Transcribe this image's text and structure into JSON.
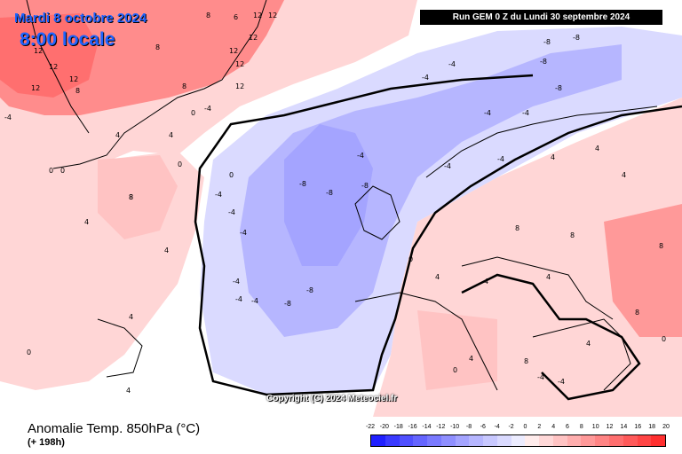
{
  "header": {
    "date": "Mardi 8 octobre 2024",
    "time": "8:00 locale",
    "run": "Run GEM 0 Z du Lundi 30 septembre 2024"
  },
  "copyright": "Copyright (C) 2024 Meteociel.fr",
  "legend": {
    "title": "Anomalie Temp. 850hPa (°C)",
    "subtitle": "(+ 198h)",
    "scale_values": [
      "-22",
      "-20",
      "-18",
      "-16",
      "-14",
      "-12",
      "-10",
      "-8",
      "-6",
      "-4",
      "-2",
      "0",
      "2",
      "4",
      "6",
      "8",
      "10",
      "12",
      "14",
      "16",
      "18",
      "20"
    ],
    "scale_colors": [
      "#2020ff",
      "#3a3aff",
      "#5050ff",
      "#6565ff",
      "#7a7aff",
      "#8f8fff",
      "#a4a4ff",
      "#b6b6ff",
      "#c8c8ff",
      "#dadaff",
      "#ececff",
      "#ffecec",
      "#ffd8d8",
      "#ffc3c3",
      "#ffaeae",
      "#ff9999",
      "#ff8484",
      "#ff6f6f",
      "#ff5a5a",
      "#ff4545",
      "#ff2f2f"
    ]
  },
  "map": {
    "colors": {
      "sea": "#ffffff",
      "warm": "#ff8c8c",
      "mild": "#ffd6d6",
      "cool": "#c8c8ff",
      "cold": "#9a9aff",
      "border": "#000000"
    },
    "contour_labels": [
      "12",
      "12",
      "12",
      "12",
      "12",
      "12",
      "12",
      "8",
      "8",
      "6",
      "8",
      "12",
      "12",
      "8",
      "12",
      "8",
      "8",
      "4",
      "4",
      "0",
      "-4",
      "0",
      "0",
      "0",
      "0",
      "-4",
      "4",
      "8",
      "4",
      "0",
      "-4",
      "-4",
      "-4",
      "-4",
      "-4",
      "-4",
      "-8",
      "-8",
      "-8",
      "-8",
      "-8",
      "-8",
      "-4",
      "-4",
      "-4",
      "-4",
      "-8",
      "-8",
      "-8",
      "-4",
      "-4",
      "-4",
      "4",
      "4",
      "4",
      "0",
      "0",
      "4",
      "4",
      "4",
      "8",
      "8",
      "4",
      "4",
      "4",
      "8",
      "-4",
      "-4",
      "0",
      "4",
      "8"
    ]
  }
}
